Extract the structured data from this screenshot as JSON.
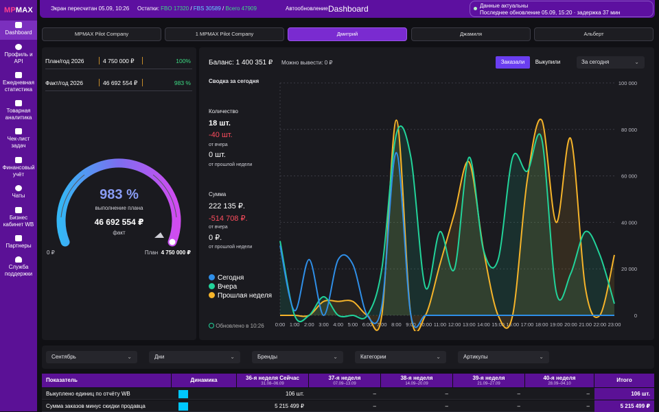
{
  "logo": {
    "mp": "MP",
    "mx": "MAX"
  },
  "sidebar": {
    "items": [
      {
        "label": "Dashboard",
        "icon": "grid-icon"
      },
      {
        "label": "Профиль и API",
        "icon": "user-icon"
      },
      {
        "label": "Ежедневная статистика",
        "icon": "chart-icon"
      },
      {
        "label": "Товарная аналитика",
        "icon": "box-icon"
      },
      {
        "label": "Чек-лист задач",
        "icon": "checklist-icon"
      },
      {
        "label": "Финансовый учёт",
        "icon": "wallet-icon"
      },
      {
        "label": "Чаты",
        "icon": "chat-icon"
      },
      {
        "label": "Бизнес кабинет WB",
        "icon": "briefcase-icon"
      },
      {
        "label": "Партнеры",
        "icon": "people-icon"
      },
      {
        "label": "Служба поддержки",
        "icon": "headset-icon"
      }
    ]
  },
  "topbar": {
    "screen": "Экран пересчитан 05.09, 10:26",
    "stock_label": "Остатки:",
    "fbo": "FBO 17320",
    "fbs": "FBS 30589",
    "total": "Всего 47909",
    "auto": "Автообновление",
    "title": "Dashboard",
    "status_line1": "Данные актуальны",
    "status_line2": "Последнее обновление 05.09, 15:20 · задержка 37 мин"
  },
  "tabs": [
    "MPMAX Pilot Company",
    "1 MPMAX Pilot Company",
    "Дмитрий",
    "Джамиля",
    "Альберт"
  ],
  "plan": {
    "year_label": "План/год 2026",
    "year_value": "4 750 000 ₽",
    "year_pct": "100%",
    "fact_label": "Факт/год 2026",
    "fact_value": "46 692 554 ₽",
    "fact_pct": "983 %",
    "gauge_pct": "983 %",
    "gauge_caption": "выполнение плана",
    "gauge_fact": "46 692 554 ₽",
    "gauge_fact_caption": "факт",
    "min": "0 ₽",
    "plan_label": "План",
    "plan_value": "4 750 000 ₽",
    "progress": 1.0
  },
  "main": {
    "balance": "Баланс: 1 400 351 ₽",
    "withdraw": "Можно вывести: 0 ₽",
    "btn_ordered": "Заказали",
    "btn_bought": "Выкупили",
    "period": "За сегодня",
    "summary_title": "Сводка за сегодня",
    "qty_label": "Количество",
    "qty_today": "18 шт.",
    "qty_diff": "-40 шт.",
    "qty_diff_label": "от вчера",
    "qty_week": "0 шт.",
    "qty_week_label": "от прошлой недели",
    "sum_label": "Сумма",
    "sum_today": "222 135 ₽.",
    "sum_diff": "-514 708 ₽.",
    "sum_diff_label": "от вчера",
    "sum_week": "0 ₽.",
    "sum_week_label": "от прошлой недели",
    "legend_today": "Сегодня",
    "legend_yesterday": "Вчера",
    "legend_lastweek": "Прошлая неделя",
    "updated": "Обновлено в 10:26",
    "colors": {
      "today": "#2f8fe8",
      "yesterday": "#22d39a",
      "lastweek": "#f6b42a"
    }
  },
  "chart_data": {
    "type": "line",
    "x": [
      "0:00",
      "1:00",
      "2:00",
      "3:00",
      "4:00",
      "5:00",
      "6:00",
      "7:00",
      "8:00",
      "9:00",
      "10:00",
      "11:00",
      "12:00",
      "13:00",
      "14:00",
      "15:00",
      "16:00",
      "17:00",
      "18:00",
      "19:00",
      "20:00",
      "21:00",
      "22:00",
      "23:00"
    ],
    "ylim": [
      0,
      100000
    ],
    "yticks": [
      "100 000",
      "80 000",
      "60 000",
      "40 000",
      "20 000",
      "0"
    ],
    "series": [
      {
        "name": "Сегодня",
        "values": [
          30000,
          2000,
          24000,
          0,
          24000,
          22000,
          0,
          4000,
          70000,
          0,
          0,
          0,
          0,
          0,
          0,
          0,
          0,
          0,
          0,
          0,
          0,
          0,
          0,
          0
        ]
      },
      {
        "name": "Вчера",
        "values": [
          32000,
          0,
          0,
          8000,
          0,
          0,
          0,
          20000,
          78000,
          68000,
          12000,
          36000,
          20000,
          68000,
          28000,
          24000,
          68000,
          62000,
          76000,
          10000,
          18000,
          36000,
          26000,
          5000
        ]
      },
      {
        "name": "Прошлая неделя",
        "values": [
          0,
          0,
          0,
          6000,
          6000,
          6000,
          0,
          0,
          84000,
          0,
          0,
          22000,
          44000,
          66000,
          28000,
          0,
          0,
          58000,
          84000,
          40000,
          76000,
          12000,
          0,
          26000
        ]
      }
    ]
  },
  "filters": [
    "Сентябрь",
    "Дни",
    "Бренды",
    "Категории",
    "Артикулы"
  ],
  "table": {
    "headers": [
      "Показатель",
      "Динамика",
      "36-я неделя Сейчас",
      "37-я неделя",
      "38-я неделя",
      "39-я неделя",
      "40-я неделя",
      "Итого"
    ],
    "subheaders": [
      "",
      "",
      "31.08–06.09",
      "07.09–13.09",
      "14.09–20.09",
      "21.09–27.09",
      "28.09–04.10",
      ""
    ],
    "rows": [
      {
        "name": "Выкуплено единиц по отчёту WB",
        "values": [
          "106 шт.",
          "–",
          "–",
          "–",
          "–"
        ],
        "total": "106 шт."
      },
      {
        "name": "Сумма заказов минус скидки продавца",
        "values": [
          "5 215 499 ₽",
          "–",
          "–",
          "–",
          "–"
        ],
        "total": "5 215 499 ₽"
      }
    ]
  }
}
